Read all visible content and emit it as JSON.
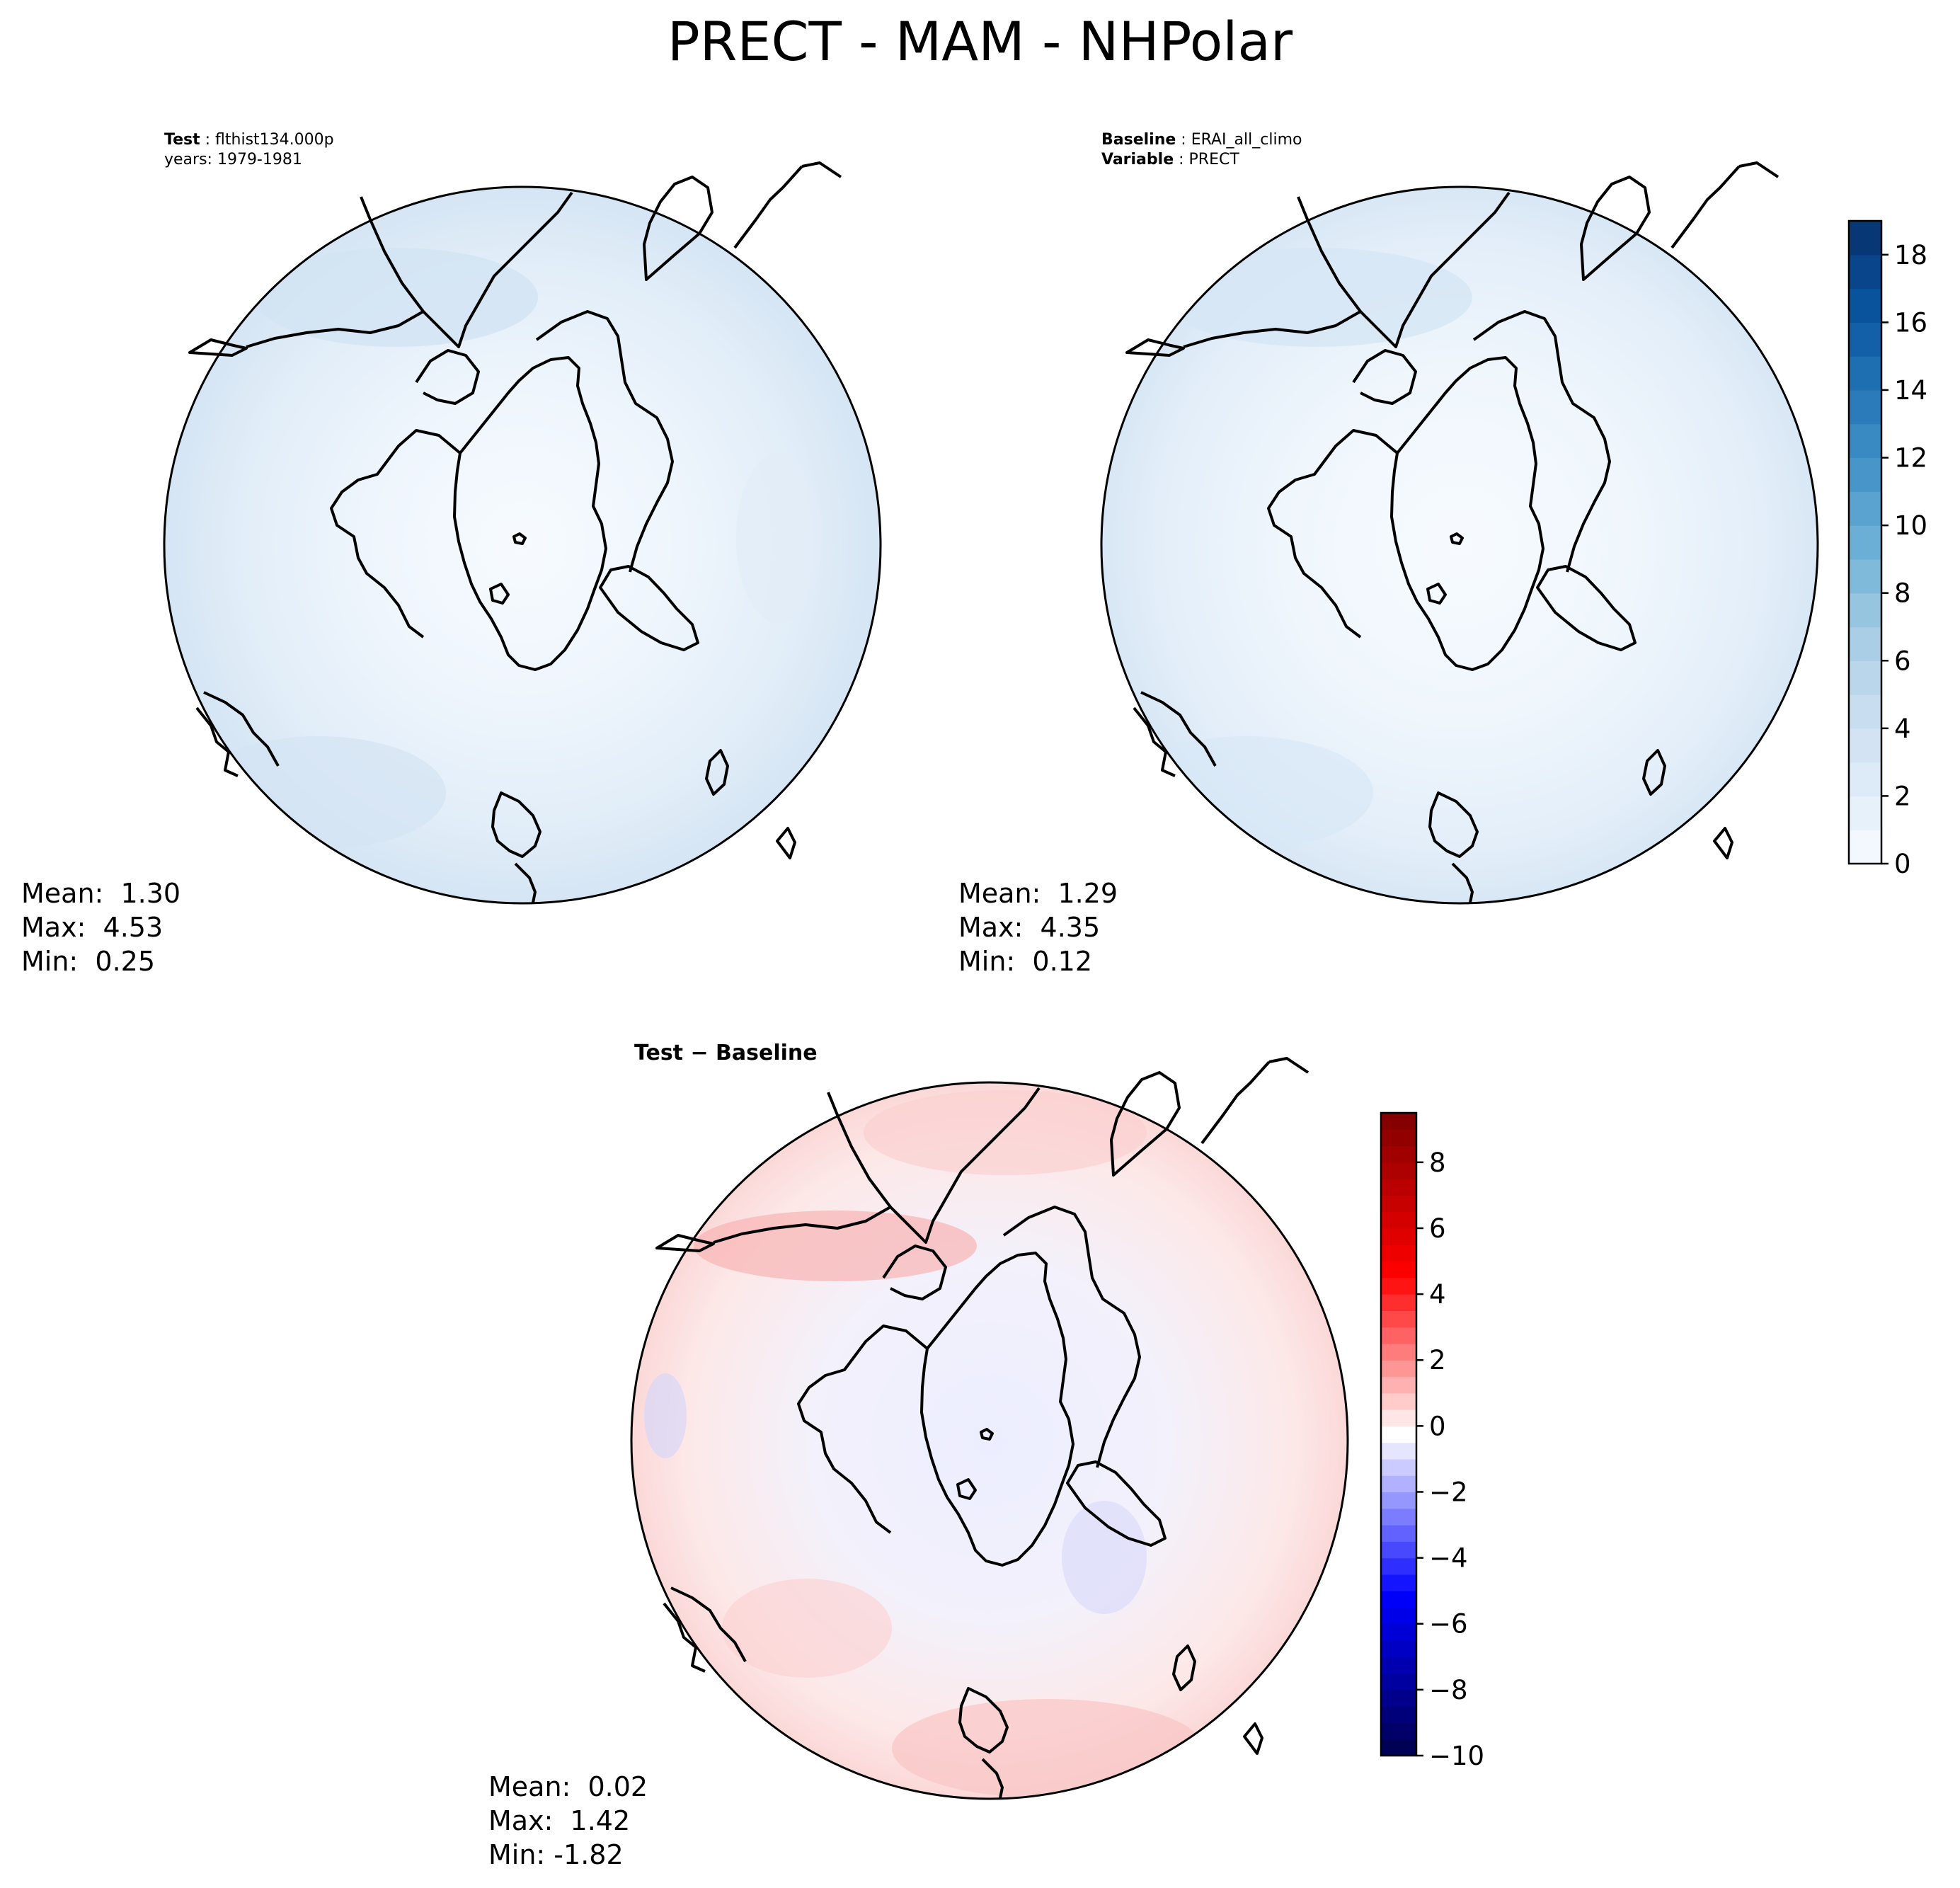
{
  "title": "PRECT - MAM - NHPolar",
  "test_panel": {
    "label_key": "Test",
    "label_value": "flthist134.000p",
    "years_line": "years: 1979-1981",
    "stats": {
      "mean": "Mean:  1.30",
      "max": "Max:  4.53",
      "min": "Min:  0.25"
    }
  },
  "baseline_panel": {
    "label_key": "Baseline",
    "label_value": "ERAI_all_climo",
    "variable_key": "Variable",
    "variable_value": "PRECT",
    "stats": {
      "mean": "Mean:  1.29",
      "max": "Max:  4.35",
      "min": "Min:  0.12"
    }
  },
  "diff_panel": {
    "title": "Test − Baseline",
    "stats": {
      "mean": "Mean:  0.02",
      "max": "Max:  1.42",
      "min": "Min: -1.82"
    }
  },
  "colors": {
    "blues_low": "#f7fbff",
    "blues_high": "#08306b",
    "diff_low": "#00004c",
    "diff_mid": "#ffffff",
    "diff_high": "#7f0000"
  },
  "chart_data": [
    {
      "type": "heatmap",
      "projection": "north-polar-stereographic",
      "title": "Test: flthist134.000p, years: 1979-1981",
      "variable": "PRECT",
      "colormap": "Blues",
      "value_range": [
        0,
        19
      ],
      "mean": 1.3,
      "max": 4.53,
      "min": 0.25
    },
    {
      "type": "heatmap",
      "projection": "north-polar-stereographic",
      "title": "Baseline: ERAI_all_climo, Variable: PRECT",
      "variable": "PRECT",
      "colormap": "Blues",
      "value_range": [
        0,
        19
      ],
      "mean": 1.29,
      "max": 4.35,
      "min": 0.12,
      "colorbar": {
        "ticks": [
          0,
          2,
          4,
          6,
          8,
          10,
          12,
          14,
          16,
          18
        ],
        "labels": [
          "0",
          "2",
          "4",
          "6",
          "8",
          "10",
          "12",
          "14",
          "16",
          "18"
        ],
        "range": [
          0,
          19
        ],
        "levels": 19
      }
    },
    {
      "type": "heatmap",
      "projection": "north-polar-stereographic",
      "title": "Test − Baseline",
      "variable": "PRECT difference",
      "colormap": "seismic",
      "value_range": [
        -10,
        9.5
      ],
      "mean": 0.02,
      "max": 1.42,
      "min": -1.82,
      "colorbar": {
        "ticks": [
          -10,
          -8,
          -6,
          -4,
          -2,
          0,
          2,
          4,
          6,
          8
        ],
        "labels": [
          "−10",
          "−8",
          "−6",
          "−4",
          "−2",
          "0",
          "2",
          "4",
          "6",
          "8"
        ],
        "range": [
          -10,
          9.5
        ],
        "levels": 39
      }
    }
  ]
}
